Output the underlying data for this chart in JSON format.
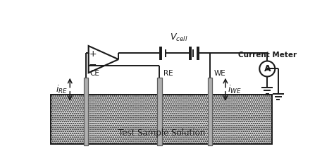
{
  "bg_color": "#ffffff",
  "line_color": "#1a1a1a",
  "electrode_fill": "#b0b0b0",
  "electrode_edge": "#606060",
  "solution_fill": "#d8d8d8",
  "solution_stipple": true,
  "title": "Test Sample Solution",
  "vcell_label": "$V_{cell}$",
  "current_meter_label": "Current Meter",
  "ce_label": "CE",
  "re_label": "RE",
  "we_label": "WE",
  "i_re_label": "$i_{RE}$",
  "i_we_label": "$i_{WE}$",
  "amp_label": "A",
  "figsize": [
    4.74,
    2.38
  ],
  "dpi": 100
}
